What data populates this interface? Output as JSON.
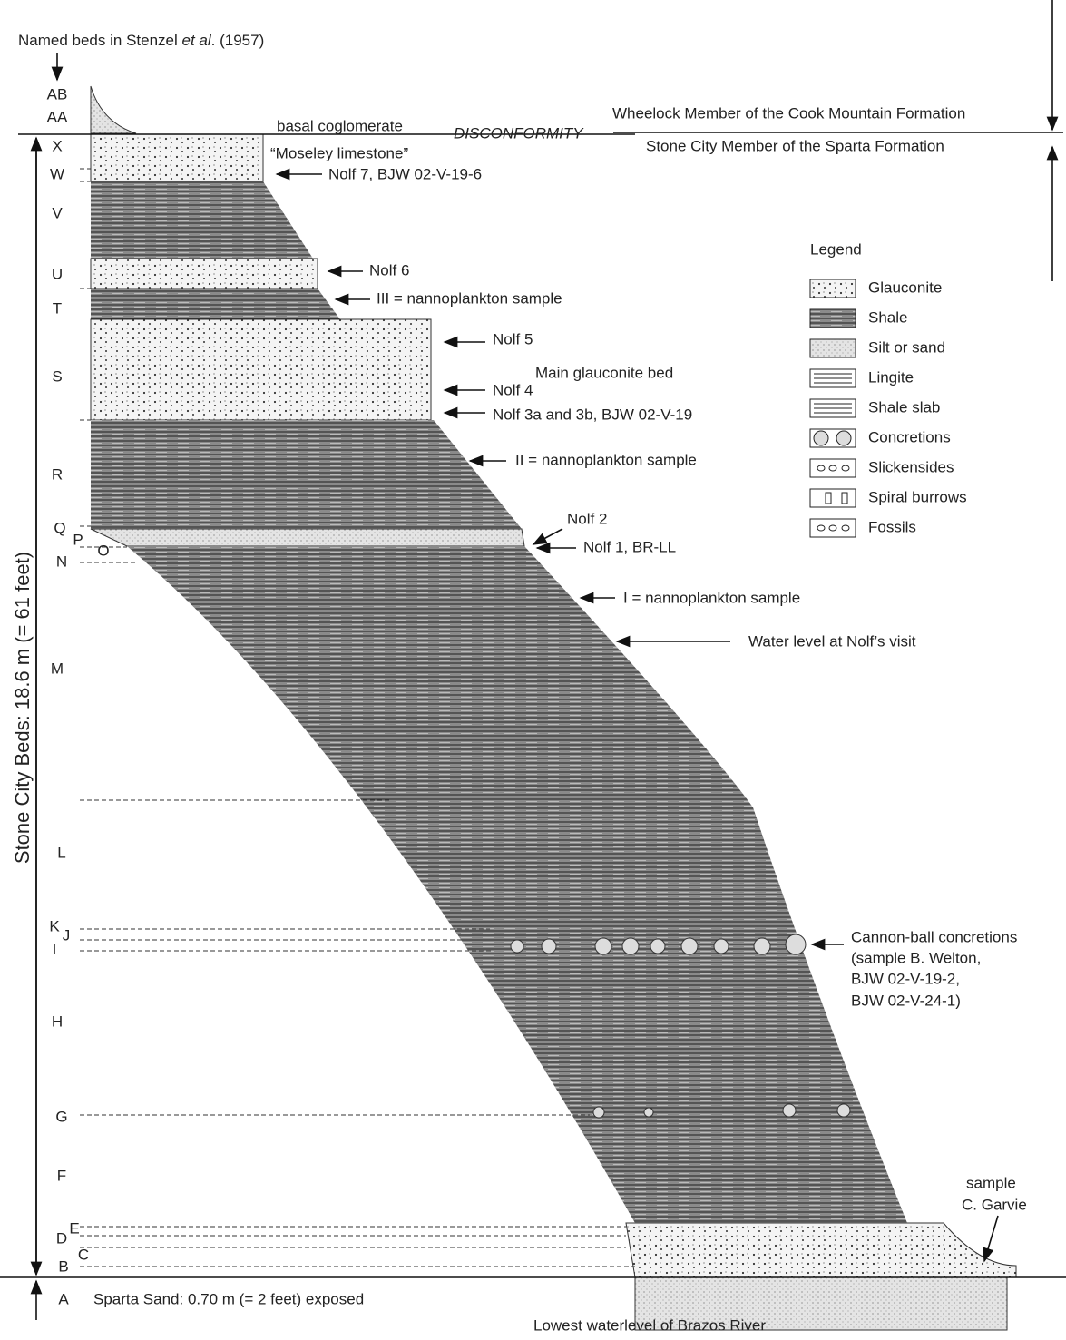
{
  "header": {
    "title_parts": [
      "Named beds in Stenzel ",
      "et al",
      ". (1957)"
    ]
  },
  "beds": [
    "AB",
    "AA",
    "X",
    "W",
    "V",
    "U",
    "T",
    "S",
    "R",
    "Q",
    "P",
    "O",
    "N",
    "M",
    "L",
    "K",
    "J",
    "I",
    "H",
    "G",
    "F",
    "E",
    "D",
    "C",
    "B",
    "A"
  ],
  "annotations": [
    "basal coglomerate",
    "“Moseley limestone”",
    "DISCONFORMITY",
    "Wheelock Member of the Cook Mountain Formation",
    "Stone City Member of the Sparta Formation",
    "Nolf 7, BJW 02-V-19-6",
    "Nolf 6",
    "III = nannoplankton sample",
    "Nolf 5",
    "Main glauconite bed",
    "Nolf 4",
    "Nolf 3a and 3b, BJW 02-V-19",
    "II = nannoplankton sample",
    "Nolf 2",
    "Nolf 1, BR-LL",
    "I = nannoplankton sample",
    "Water level at Nolf’s visit",
    "Cannon-ball concretions",
    "(sample B. Welton,",
    "BJW 02-V-19-2,",
    "BJW 02-V-24-1)",
    "sample",
    "C. Garvie"
  ],
  "scale": {
    "stone_city": "Stone City Beds: 18.6 m (= 61 feet)",
    "sparta": "Sparta Sand: 0.70 m (= 2 feet) exposed"
  },
  "footer": "Lowest waterlevel of Brazos River",
  "legend": {
    "title": "Legend",
    "items": [
      "Glauconite",
      "Shale",
      "Silt or sand",
      "Lingite",
      "Shale slab",
      "Concretions",
      "Slickensides",
      "Spiral burrows",
      "Fossils"
    ]
  }
}
